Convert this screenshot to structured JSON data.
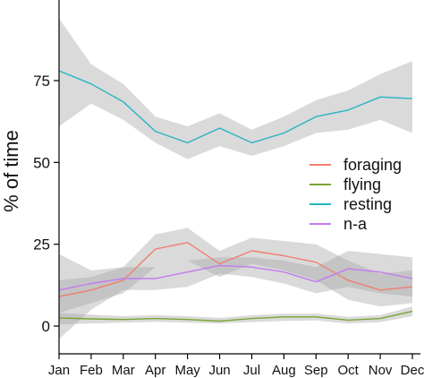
{
  "chart_data": {
    "type": "line",
    "title": "",
    "xlabel": "",
    "ylabel": "% of time",
    "categories": [
      "Jan",
      "Feb",
      "Mar",
      "Apr",
      "May",
      "Jun",
      "Jul",
      "Aug",
      "Sep",
      "Oct",
      "Nov",
      "Dec"
    ],
    "ylim": [
      -5,
      100
    ],
    "yticks": [
      0,
      25,
      50,
      75
    ],
    "grid": false,
    "legend_position": "right",
    "series": [
      {
        "name": "foraging",
        "color": "#f07f6f",
        "values": [
          9,
          11,
          14,
          23.5,
          25.5,
          19,
          23,
          21.5,
          19.5,
          14,
          11,
          12
        ],
        "lower": [
          4,
          7,
          10,
          18,
          20,
          15,
          19,
          17,
          14,
          8,
          6,
          7
        ],
        "upper": [
          14,
          15,
          18,
          28,
          30,
          23,
          27,
          26,
          25,
          20,
          16,
          17
        ]
      },
      {
        "name": "flying",
        "color": "#78a632",
        "values": [
          2.5,
          2.2,
          2,
          2.3,
          2,
          1.5,
          2.3,
          2.8,
          2.8,
          1.8,
          2.3,
          4.5
        ],
        "lower": [
          0.5,
          0.8,
          1,
          1.3,
          1,
          0.8,
          1.2,
          1.6,
          1.7,
          0.8,
          1.2,
          3
        ],
        "upper": [
          4,
          3.5,
          3,
          3.3,
          3,
          2.5,
          3.3,
          3.8,
          3.8,
          2.8,
          3.3,
          6
        ]
      },
      {
        "name": "resting",
        "color": "#27b4c4",
        "values": [
          78,
          74,
          68.5,
          59.5,
          56,
          60.5,
          56,
          59,
          64,
          66,
          70,
          69.5
        ],
        "lower": [
          61,
          68,
          63,
          56,
          51,
          55,
          52,
          55,
          59,
          60,
          63,
          59
        ],
        "upper": [
          94,
          80,
          74,
          64,
          61,
          65,
          60,
          64,
          69,
          72,
          77,
          81
        ]
      },
      {
        "name": "n-a",
        "color": "#c27af0",
        "values": [
          11,
          13,
          14.5,
          14.5,
          16.5,
          18.5,
          18,
          16.5,
          13.5,
          17.5,
          16.5,
          14.5
        ],
        "lower": [
          -4,
          5,
          11,
          11,
          12,
          16,
          15,
          13,
          10,
          12,
          10,
          9
        ],
        "upper": [
          22,
          17,
          18,
          18,
          20,
          21,
          21,
          20,
          18,
          23,
          22,
          21
        ]
      }
    ]
  }
}
